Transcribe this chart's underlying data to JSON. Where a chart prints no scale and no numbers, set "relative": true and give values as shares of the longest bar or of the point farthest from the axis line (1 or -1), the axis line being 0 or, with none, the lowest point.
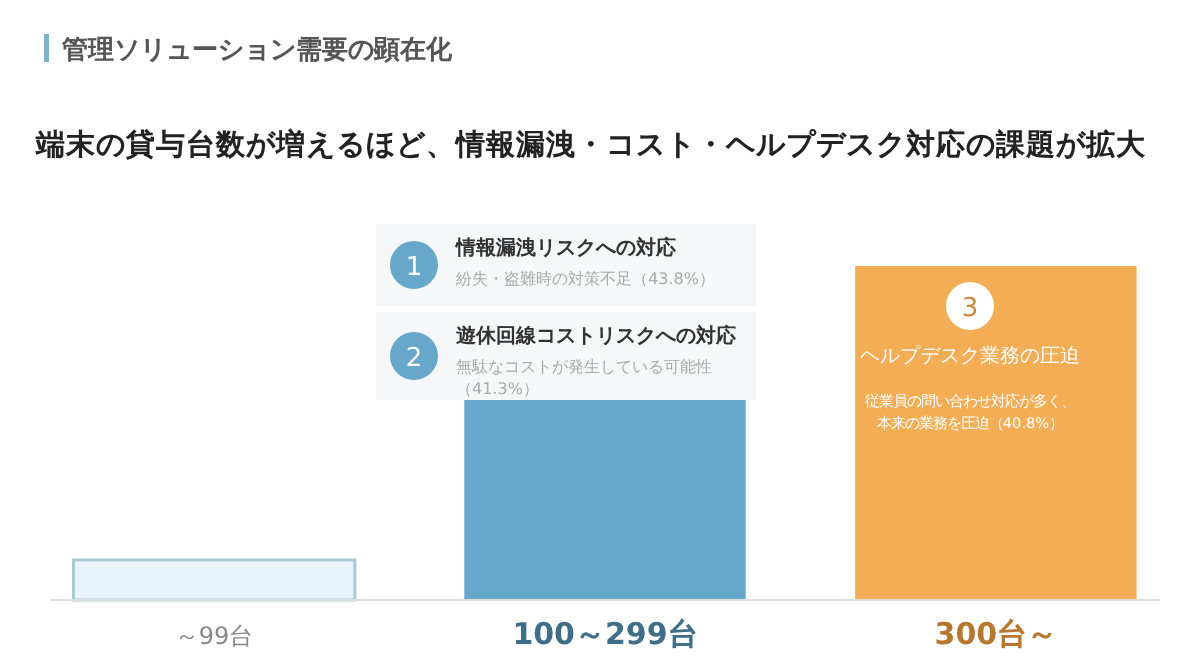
{
  "chart_data": {
    "type": "bar",
    "title": "管理ソリューション需要の顕在化",
    "subtitle": "端末の貸与台数が増えるほど、情報漏洩・コスト・ヘルプデスク対応の課題が拡大",
    "categories": [
      "～99台",
      "100～299台",
      "300台～"
    ],
    "values": [
      0.12,
      0.6,
      1
    ],
    "colors": [
      "#e8f4fc",
      "#67a7c9",
      "#f2ad55"
    ],
    "relative": true,
    "annotations": [
      "1",
      "情報漏洩リスクへの対応",
      "紛失・盗難時の対策不足（43.8%）",
      "2",
      "遊休回線コストリスクへの対応",
      "無駄なコストが発生している可能性",
      "（41.3%）",
      "3",
      "ヘルプデスク業務の圧迫",
      "従業員の問い合わせ対応が多く、",
      "本来の業務を圧迫（40.8%）"
    ]
  }
}
